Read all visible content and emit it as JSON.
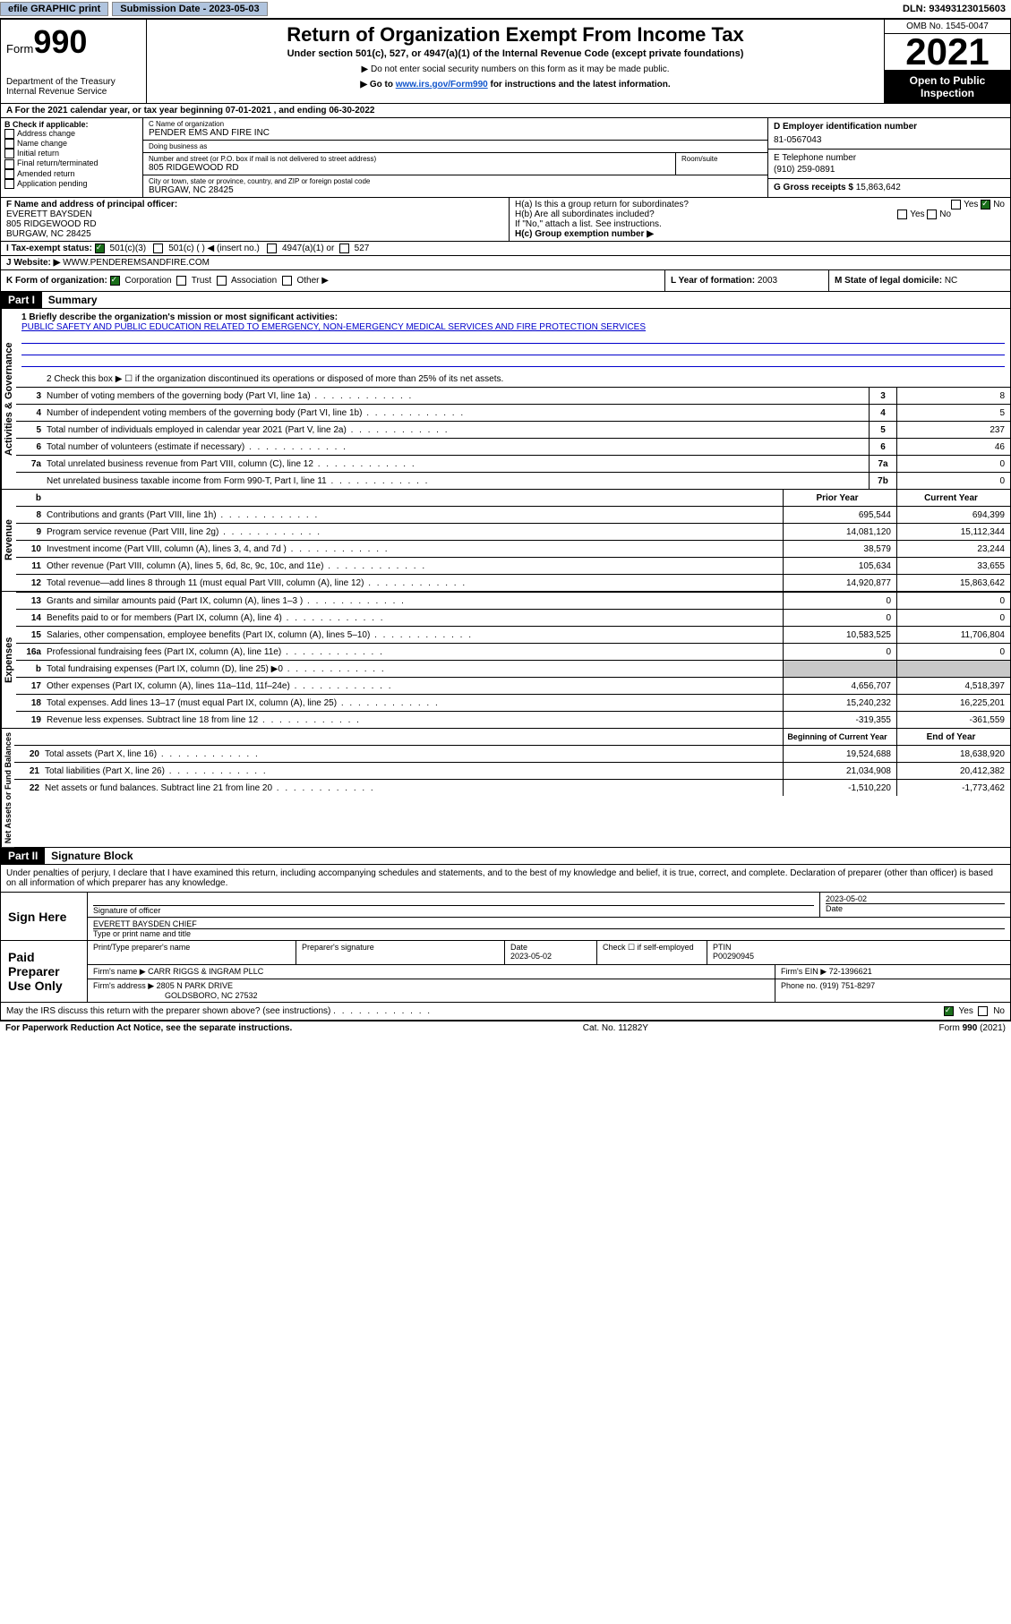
{
  "topbar": {
    "efile": "efile GRAPHIC print",
    "submission_label": "Submission Date - 2023-05-03",
    "dln": "DLN: 93493123015603"
  },
  "header": {
    "form_label": "Form",
    "form_number": "990",
    "dept": "Department of the Treasury\nInternal Revenue Service",
    "title": "Return of Organization Exempt From Income Tax",
    "subtitle": "Under section 501(c), 527, or 4947(a)(1) of the Internal Revenue Code (except private foundations)",
    "note1": "▶ Do not enter social security numbers on this form as it may be made public.",
    "note2_pre": "▶ Go to ",
    "note2_link": "www.irs.gov/Form990",
    "note2_post": " for instructions and the latest information.",
    "omb": "OMB No. 1545-0047",
    "year": "2021",
    "inspect": "Open to Public Inspection"
  },
  "period": {
    "text": "A For the 2021 calendar year, or tax year beginning 07-01-2021   , and ending 06-30-2022"
  },
  "sectionB": {
    "header": "B Check if applicable:",
    "items": [
      "Address change",
      "Name change",
      "Initial return",
      "Final return/terminated",
      "Amended return",
      "Application pending"
    ]
  },
  "sectionC": {
    "name_label": "C Name of organization",
    "name": "PENDER EMS AND FIRE INC",
    "dba_label": "Doing business as",
    "dba": "",
    "street_label": "Number and street (or P.O. box if mail is not delivered to street address)",
    "room_label": "Room/suite",
    "street": "805 RIDGEWOOD RD",
    "city_label": "City or town, state or province, country, and ZIP or foreign postal code",
    "city": "BURGAW, NC  28425"
  },
  "sectionD": {
    "ein_label": "D Employer identification number",
    "ein": "81-0567043"
  },
  "sectionE": {
    "phone_label": "E Telephone number",
    "phone": "(910) 259-0891"
  },
  "sectionG": {
    "gross_label": "G Gross receipts $",
    "gross": "15,863,642"
  },
  "sectionF": {
    "label": "F Name and address of principal officer:",
    "name": "EVERETT BAYSDEN",
    "addr1": "805 RIDGEWOOD RD",
    "addr2": "BURGAW, NC  28425"
  },
  "sectionH": {
    "ha": "H(a)  Is this a group return for subordinates?",
    "ha_ans": "No",
    "hb": "H(b)  Are all subordinates included?",
    "hb_note": "If \"No,\" attach a list. See instructions.",
    "hc": "H(c)  Group exemption number ▶"
  },
  "sectionI": {
    "label": "I   Tax-exempt status:",
    "opt1": "501(c)(3)",
    "opt2": "501(c) (  ) ◀ (insert no.)",
    "opt3": "4947(a)(1) or",
    "opt4": "527"
  },
  "sectionJ": {
    "label": "J   Website: ▶",
    "value": "WWW.PENDEREMSANDFIRE.COM"
  },
  "sectionK": {
    "label": "K Form of organization:",
    "opts": [
      "Corporation",
      "Trust",
      "Association",
      "Other ▶"
    ]
  },
  "sectionL": {
    "label": "L Year of formation:",
    "value": "2003"
  },
  "sectionM": {
    "label": "M State of legal domicile:",
    "value": "NC"
  },
  "partI": {
    "header": "Part I",
    "title": "Summary",
    "line1_label": "1   Briefly describe the organization's mission or most significant activities:",
    "line1_value": "PUBLIC SAFETY AND PUBLIC EDUCATION RELATED TO EMERGENCY, NON-EMERGENCY MEDICAL SERVICES AND FIRE PROTECTION SERVICES",
    "line2": "2   Check this box ▶ ☐  if the organization discontinued its operations or disposed of more than 25% of its net assets.",
    "lines_small": [
      {
        "n": "3",
        "d": "Number of voting members of the governing body (Part VI, line 1a)",
        "box": "3",
        "v": "8"
      },
      {
        "n": "4",
        "d": "Number of independent voting members of the governing body (Part VI, line 1b)",
        "box": "4",
        "v": "5"
      },
      {
        "n": "5",
        "d": "Total number of individuals employed in calendar year 2021 (Part V, line 2a)",
        "box": "5",
        "v": "237"
      },
      {
        "n": "6",
        "d": "Total number of volunteers (estimate if necessary)",
        "box": "6",
        "v": "46"
      },
      {
        "n": "7a",
        "d": "Total unrelated business revenue from Part VIII, column (C), line 12",
        "box": "7a",
        "v": "0"
      },
      {
        "n": "",
        "d": "Net unrelated business taxable income from Form 990-T, Part I, line 11",
        "box": "7b",
        "v": "0"
      }
    ],
    "col_prior": "Prior Year",
    "col_current": "Current Year",
    "revenue": [
      {
        "n": "8",
        "d": "Contributions and grants (Part VIII, line 1h)",
        "p": "695,544",
        "c": "694,399"
      },
      {
        "n": "9",
        "d": "Program service revenue (Part VIII, line 2g)",
        "p": "14,081,120",
        "c": "15,112,344"
      },
      {
        "n": "10",
        "d": "Investment income (Part VIII, column (A), lines 3, 4, and 7d )",
        "p": "38,579",
        "c": "23,244"
      },
      {
        "n": "11",
        "d": "Other revenue (Part VIII, column (A), lines 5, 6d, 8c, 9c, 10c, and 11e)",
        "p": "105,634",
        "c": "33,655"
      },
      {
        "n": "12",
        "d": "Total revenue—add lines 8 through 11 (must equal Part VIII, column (A), line 12)",
        "p": "14,920,877",
        "c": "15,863,642"
      }
    ],
    "expenses": [
      {
        "n": "13",
        "d": "Grants and similar amounts paid (Part IX, column (A), lines 1–3 )",
        "p": "0",
        "c": "0"
      },
      {
        "n": "14",
        "d": "Benefits paid to or for members (Part IX, column (A), line 4)",
        "p": "0",
        "c": "0"
      },
      {
        "n": "15",
        "d": "Salaries, other compensation, employee benefits (Part IX, column (A), lines 5–10)",
        "p": "10,583,525",
        "c": "11,706,804"
      },
      {
        "n": "16a",
        "d": "Professional fundraising fees (Part IX, column (A), line 11e)",
        "p": "0",
        "c": "0"
      },
      {
        "n": "b",
        "d": "Total fundraising expenses (Part IX, column (D), line 25) ▶0",
        "p": "",
        "c": "",
        "shaded": true
      },
      {
        "n": "17",
        "d": "Other expenses (Part IX, column (A), lines 11a–11d, 11f–24e)",
        "p": "4,656,707",
        "c": "4,518,397"
      },
      {
        "n": "18",
        "d": "Total expenses. Add lines 13–17 (must equal Part IX, column (A), line 25)",
        "p": "15,240,232",
        "c": "16,225,201"
      },
      {
        "n": "19",
        "d": "Revenue less expenses. Subtract line 18 from line 12",
        "p": "-319,355",
        "c": "-361,559"
      }
    ],
    "col_begin": "Beginning of Current Year",
    "col_end": "End of Year",
    "netassets": [
      {
        "n": "20",
        "d": "Total assets (Part X, line 16)",
        "p": "19,524,688",
        "c": "18,638,920"
      },
      {
        "n": "21",
        "d": "Total liabilities (Part X, line 26)",
        "p": "21,034,908",
        "c": "20,412,382"
      },
      {
        "n": "22",
        "d": "Net assets or fund balances. Subtract line 21 from line 20",
        "p": "-1,510,220",
        "c": "-1,773,462"
      }
    ],
    "vtab_gov": "Activities & Governance",
    "vtab_rev": "Revenue",
    "vtab_exp": "Expenses",
    "vtab_net": "Net Assets or\nFund Balances"
  },
  "partII": {
    "header": "Part II",
    "title": "Signature Block",
    "decl": "Under penalties of perjury, I declare that I have examined this return, including accompanying schedules and statements, and to the best of my knowledge and belief, it is true, correct, and complete. Declaration of preparer (other than officer) is based on all information of which preparer has any knowledge.",
    "sign_here": "Sign Here",
    "sig_officer_label": "Signature of officer",
    "sig_date": "2023-05-02",
    "date_label": "Date",
    "officer_name": "EVERETT BAYSDEN CHIEF",
    "officer_type_label": "Type or print name and title",
    "paid_label": "Paid Preparer Use Only",
    "prep_name_label": "Print/Type preparer's name",
    "prep_sig_label": "Preparer's signature",
    "prep_date_label": "Date",
    "prep_date": "2023-05-02",
    "check_label": "Check ☐ if self-employed",
    "ptin_label": "PTIN",
    "ptin": "P00290945",
    "firm_name_label": "Firm's name    ▶",
    "firm_name": "CARR RIGGS & INGRAM PLLC",
    "firm_ein_label": "Firm's EIN ▶",
    "firm_ein": "72-1396621",
    "firm_addr_label": "Firm's address ▶",
    "firm_addr1": "2805 N PARK DRIVE",
    "firm_addr2": "GOLDSBORO, NC  27532",
    "firm_phone_label": "Phone no.",
    "firm_phone": "(919) 751-8297",
    "discuss": "May the IRS discuss this return with the preparer shown above? (see instructions)",
    "discuss_ans": "Yes"
  },
  "footer": {
    "left": "For Paperwork Reduction Act Notice, see the separate instructions.",
    "mid": "Cat. No. 11282Y",
    "right": "Form 990 (2021)"
  },
  "labels": {
    "yes": "Yes",
    "no": "No"
  },
  "colors": {
    "link": "#1155cc",
    "black": "#000000",
    "check_green": "#1a6e1a",
    "shade": "#c8c8c8",
    "button_bg": "#b0c4de"
  }
}
